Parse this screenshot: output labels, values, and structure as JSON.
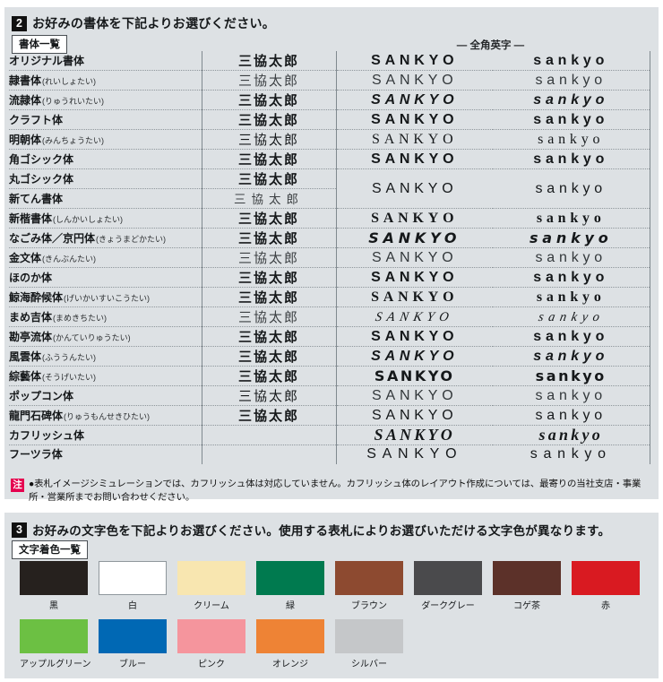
{
  "fonts_section": {
    "badge": "2",
    "title": "お好みの書体を下記よりお選びください。",
    "list_box_label": "書体一覧",
    "fullwidth_header": "— 全角英字 —",
    "note_badge": "注",
    "note_text": "●表札イメージシミュレーションでは、カフリッシュ体は対応していません。カフリッシュ体のレイアウト作成については、最寄りの当社支店・事業所・営業所までお問い合わせください。",
    "rows": [
      {
        "name": "オリジナル書体",
        "reading": "",
        "jp": "三協太郎",
        "upper": "SANKYO",
        "lower": "sankyo",
        "jp_style": "jp-b",
        "en_style": "s-b"
      },
      {
        "name": "隷書体",
        "reading": "れいしょたい",
        "jp": "三協太郎",
        "upper": "SANKYO",
        "lower": "sankyo",
        "jp_style": "jp-l",
        "en_style": "s-l"
      },
      {
        "name": "流隷体",
        "reading": "りゅうれいたい",
        "jp": "三協太郎",
        "upper": "SANKYO",
        "lower": "sankyo",
        "jp_style": "jp-b",
        "en_style": "s-bi"
      },
      {
        "name": "クラフト体",
        "reading": "",
        "jp": "三協太郎",
        "upper": "SANKYO",
        "lower": "sankyo",
        "jp_style": "jp-b",
        "en_style": "s-b"
      },
      {
        "name": "明朝体",
        "reading": "みんちょうたい",
        "jp": "三協太郎",
        "upper": "SANKYO",
        "lower": "sankyo",
        "jp_style": "jp-r",
        "en_style": "s-sf"
      },
      {
        "name": "角ゴシック体",
        "reading": "",
        "jp": "三協太郎",
        "upper": "SANKYO",
        "lower": "sankyo",
        "jp_style": "jp-b",
        "en_style": "s-b"
      },
      {
        "name": "丸ゴシック体",
        "reading": "",
        "jp": "三協太郎",
        "upper": "SANKYO",
        "lower": "sankyo",
        "jp_style": "jp-b",
        "en_style": "s-reg",
        "merge": "start"
      },
      {
        "name": "新てん書体",
        "reading": "",
        "jp": "三協太郎",
        "upper": "",
        "lower": "",
        "jp_style": "jp-seal",
        "en_style": "",
        "merge": "skip"
      },
      {
        "name": "新楷書体",
        "reading": "しんかいしょたい",
        "jp": "三協太郎",
        "upper": "SANKYO",
        "lower": "sankyo",
        "jp_style": "jp-b",
        "en_style": "s-sfb"
      },
      {
        "name": "なごみ体／京円体",
        "reading": "きょうまどかたい",
        "jp": "三協太郎",
        "upper": "SANKYO",
        "lower": "sankyo",
        "jp_style": "jp-b",
        "en_style": "s-hand"
      },
      {
        "name": "金文体",
        "reading": "きんぶんたい",
        "jp": "三協太郎",
        "upper": "SANKYO",
        "lower": "sankyo",
        "jp_style": "jp-l",
        "en_style": "s-l",
        "muted": true
      },
      {
        "name": "ほのか体",
        "reading": "",
        "jp": "三協太郎",
        "upper": "SANKYO",
        "lower": "sankyo",
        "jp_style": "jp-b",
        "en_style": "s-b"
      },
      {
        "name": "鯨海酔候体",
        "reading": "げいかいすいこうたい",
        "jp": "三協太郎",
        "upper": "SANKYO",
        "lower": "sankyo",
        "jp_style": "jp-b",
        "en_style": "s-sfb"
      },
      {
        "name": "まめ吉体",
        "reading": "まめきちたい",
        "jp": "三協太郎",
        "upper": "SANKYO",
        "lower": "sankyo",
        "jp_style": "jp-l",
        "en_style": "s-cur"
      },
      {
        "name": "勘亭流体",
        "reading": "かんていりゅうたい",
        "jp": "三協太郎",
        "upper": "SANKYO",
        "lower": "sankyo",
        "jp_style": "jp-b",
        "en_style": "s-b"
      },
      {
        "name": "風雲体",
        "reading": "ふううんたい",
        "jp": "三協太郎",
        "upper": "SANKYO",
        "lower": "sankyo",
        "jp_style": "jp-b",
        "en_style": "s-bi"
      },
      {
        "name": "綜藝体",
        "reading": "そうげいたい",
        "jp": "三協太郎",
        "upper": "SANKYO",
        "lower": "sankyo",
        "jp_style": "jp-b",
        "en_style": "s-blk"
      },
      {
        "name": "ポップコン体",
        "reading": "",
        "jp": "三協太郎",
        "upper": "SANKYO",
        "lower": "sankyo",
        "jp_style": "jp-r",
        "en_style": "s-l"
      },
      {
        "name": "龍門石碑体",
        "reading": "りゅうもんせきひたい",
        "jp": "三協太郎",
        "upper": "SANKYO",
        "lower": "sankyo",
        "jp_style": "jp-b",
        "en_style": "s-reg"
      },
      {
        "name": "カフリッシュ体",
        "reading": "",
        "jp": "",
        "upper": "SANKYO",
        "lower": "sankyo",
        "jp_style": "",
        "en_style": "s-cal"
      },
      {
        "name": "フーツラ体",
        "reading": "",
        "jp": "",
        "upper": "SANKYO",
        "lower": "sankyo",
        "jp_style": "",
        "en_style": "s-fut"
      }
    ]
  },
  "colors_section": {
    "badge": "3",
    "title": "お好みの文字色を下記よりお選びください。使用する表札によりお選びいただける文字色が異なります。",
    "list_box_label": "文字着色一覧",
    "swatches": [
      {
        "label": "黒",
        "hex": "#26211e",
        "border": false
      },
      {
        "label": "白",
        "hex": "#ffffff",
        "border": true
      },
      {
        "label": "クリーム",
        "hex": "#f8e6b0",
        "border": false
      },
      {
        "label": "緑",
        "hex": "#007a4f",
        "border": false
      },
      {
        "label": "ブラウン",
        "hex": "#8d4a30",
        "border": false
      },
      {
        "label": "ダークグレー",
        "hex": "#4a4a4c",
        "border": false
      },
      {
        "label": "コゲ茶",
        "hex": "#5c3129",
        "border": false
      },
      {
        "label": "赤",
        "hex": "#d91a21",
        "border": false
      },
      {
        "label": "アップルグリーン",
        "hex": "#6cc043",
        "border": false
      },
      {
        "label": "ブルー",
        "hex": "#0068b4",
        "border": false
      },
      {
        "label": "ピンク",
        "hex": "#f5959d",
        "border": false
      },
      {
        "label": "オレンジ",
        "hex": "#ee8335",
        "border": false
      },
      {
        "label": "シルバー",
        "hex": "#c5c7c9",
        "border": false
      }
    ]
  }
}
